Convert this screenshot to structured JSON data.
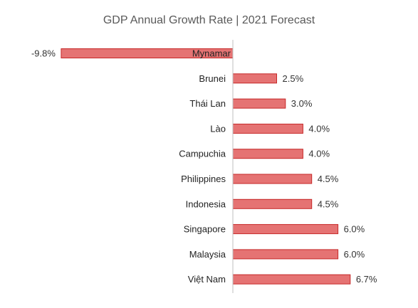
{
  "chart_data": {
    "type": "bar",
    "orientation": "horizontal",
    "title": "GDP Annual Growth Rate | 2021 Forecast",
    "categories": [
      "Mynamar",
      "Brunei",
      "Thái Lan",
      "Lào",
      "Campuchia",
      "Philippines",
      "Indonesia",
      "Singapore",
      "Malaysia",
      "Việt Nam"
    ],
    "values": [
      -9.8,
      2.5,
      3.0,
      4.0,
      4.0,
      4.5,
      4.5,
      6.0,
      6.0,
      6.7
    ],
    "value_labels": [
      "-9.8%",
      "2.5%",
      "3.0%",
      "4.0%",
      "4.0%",
      "4.5%",
      "4.5%",
      "6.0%",
      "6.0%",
      "6.7%"
    ],
    "bar_color": "#e57373",
    "bar_border_color": "#c62828",
    "axis_color": "#bfbfbf",
    "grid": false,
    "legend": "none"
  }
}
